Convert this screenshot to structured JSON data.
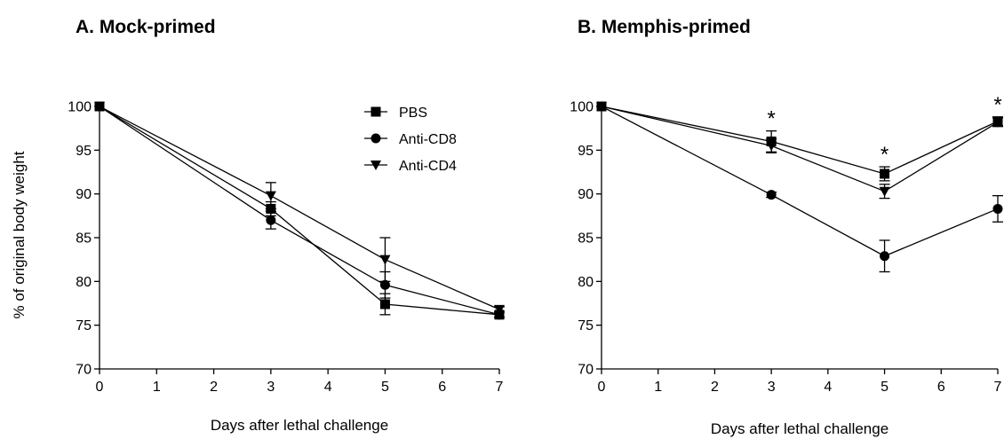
{
  "ylabel": "% of original body weight",
  "chart_data": [
    {
      "type": "line",
      "title": "A. Mock-primed",
      "xlabel": "Days after lethal challenge",
      "ylabel": "% of original body weight",
      "xlim": [
        0,
        7
      ],
      "ylim": [
        70,
        100
      ],
      "xticks": [
        "0",
        "1",
        "2",
        "3",
        "4",
        "5",
        "6",
        "7"
      ],
      "yticks": [
        "70",
        "75",
        "80",
        "85",
        "90",
        "95",
        "100"
      ],
      "x": [
        0,
        3,
        5,
        7
      ],
      "legend_position": "top-right",
      "series": [
        {
          "name": "PBS",
          "marker": "square",
          "values": [
            100,
            88.3,
            77.4,
            76.2
          ],
          "errors": [
            0,
            0.8,
            1.2,
            0.3
          ]
        },
        {
          "name": "Anti-CD8",
          "marker": "circle",
          "values": [
            100,
            87.0,
            79.6,
            76.2
          ],
          "errors": [
            0,
            1.0,
            1.5,
            0.3
          ]
        },
        {
          "name": "Anti-CD4",
          "marker": "triangle-down",
          "values": [
            100,
            89.8,
            82.5,
            76.8
          ],
          "errors": [
            0,
            1.5,
            2.5,
            0.3
          ]
        }
      ],
      "annotations": []
    },
    {
      "type": "line",
      "title": "B. Memphis-primed",
      "xlabel": "Days after lethal challenge",
      "ylabel": "",
      "xlim": [
        0,
        7
      ],
      "ylim": [
        70,
        100
      ],
      "xticks": [
        "0",
        "1",
        "2",
        "3",
        "4",
        "5",
        "6",
        "7"
      ],
      "yticks": [
        "70",
        "75",
        "80",
        "85",
        "90",
        "95",
        "100"
      ],
      "x": [
        0,
        3,
        5,
        7
      ],
      "series": [
        {
          "name": "PBS",
          "marker": "square",
          "values": [
            100,
            96.0,
            92.3,
            98.3
          ],
          "errors": [
            0,
            1.2,
            0.8,
            0.5
          ]
        },
        {
          "name": "Anti-CD8",
          "marker": "circle",
          "values": [
            100,
            89.9,
            82.9,
            88.3
          ],
          "errors": [
            0,
            0.3,
            1.8,
            1.5
          ]
        },
        {
          "name": "Anti-CD4",
          "marker": "triangle-down",
          "values": [
            100,
            95.5,
            90.3,
            98.2
          ],
          "errors": [
            0,
            0.8,
            0.8,
            0.5
          ]
        }
      ],
      "annotations": [
        {
          "text": "*",
          "x": 3
        },
        {
          "text": "*",
          "x": 5
        },
        {
          "text": "*",
          "x": 7
        }
      ]
    }
  ]
}
